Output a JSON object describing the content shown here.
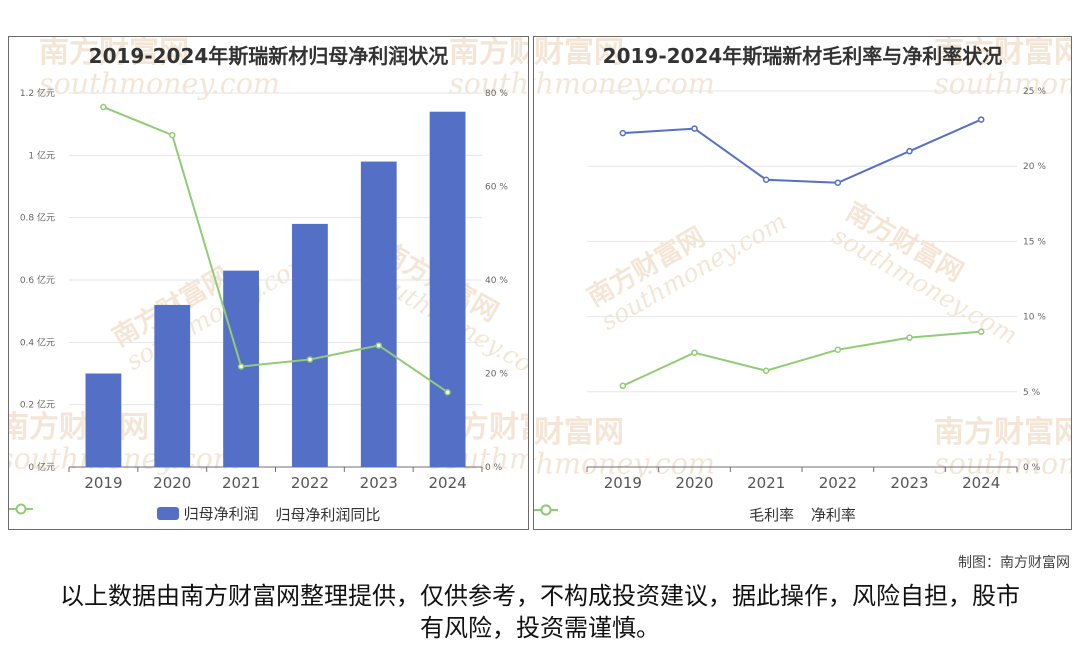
{
  "credit": "制图：南方财富网",
  "disclaimer": "以上数据由南方财富网整理提供，仅供参考，不构成投资建议，据此操作，风险自担，股市有风险，投资需谨慎。",
  "watermark": {
    "cn": "南方财富网",
    "en": "southmoney.com"
  },
  "chart_data": [
    {
      "type": "bar",
      "title": "2019-2024年斯瑞新材归母净利润状况",
      "categories": [
        "2019",
        "2020",
        "2021",
        "2022",
        "2023",
        "2024"
      ],
      "left_axis": {
        "ylim": [
          0,
          1.2
        ],
        "ticks": [
          "0 亿元",
          "0.2 亿元",
          "0.4 亿元",
          "0.6 亿元",
          "0.8 亿元",
          "1 亿元",
          "1.2 亿元"
        ]
      },
      "right_axis": {
        "ylim": [
          0,
          80
        ],
        "ticks": [
          "0 %",
          "20 %",
          "40 %",
          "60 %",
          "80 %"
        ]
      },
      "series": [
        {
          "name": "归母净利润",
          "kind": "bar",
          "axis": "left",
          "color": "#5470c6",
          "values": [
            0.3,
            0.52,
            0.63,
            0.78,
            0.98,
            1.14
          ]
        },
        {
          "name": "归母净利润同比",
          "kind": "line",
          "axis": "right",
          "color": "#91cc75",
          "values": [
            77,
            71,
            21.5,
            23,
            26,
            16
          ]
        }
      ],
      "grid": true,
      "legend": "bottom"
    },
    {
      "type": "line",
      "title": "2019-2024年斯瑞新材毛利率与净利率状况",
      "categories": [
        "2019",
        "2020",
        "2021",
        "2022",
        "2023",
        "2024"
      ],
      "right_axis": {
        "ylim": [
          0,
          25
        ],
        "ticks": [
          "0 %",
          "5 %",
          "10 %",
          "15 %",
          "20 %",
          "25 %"
        ]
      },
      "series": [
        {
          "name": "毛利率",
          "kind": "line",
          "color": "#5470c6",
          "values": [
            22.2,
            22.5,
            19.1,
            18.9,
            21.0,
            23.1
          ]
        },
        {
          "name": "净利率",
          "kind": "line",
          "color": "#91cc75",
          "values": [
            5.4,
            7.6,
            6.4,
            7.8,
            8.6,
            9.0
          ]
        }
      ],
      "grid": true,
      "legend": "bottom"
    }
  ]
}
